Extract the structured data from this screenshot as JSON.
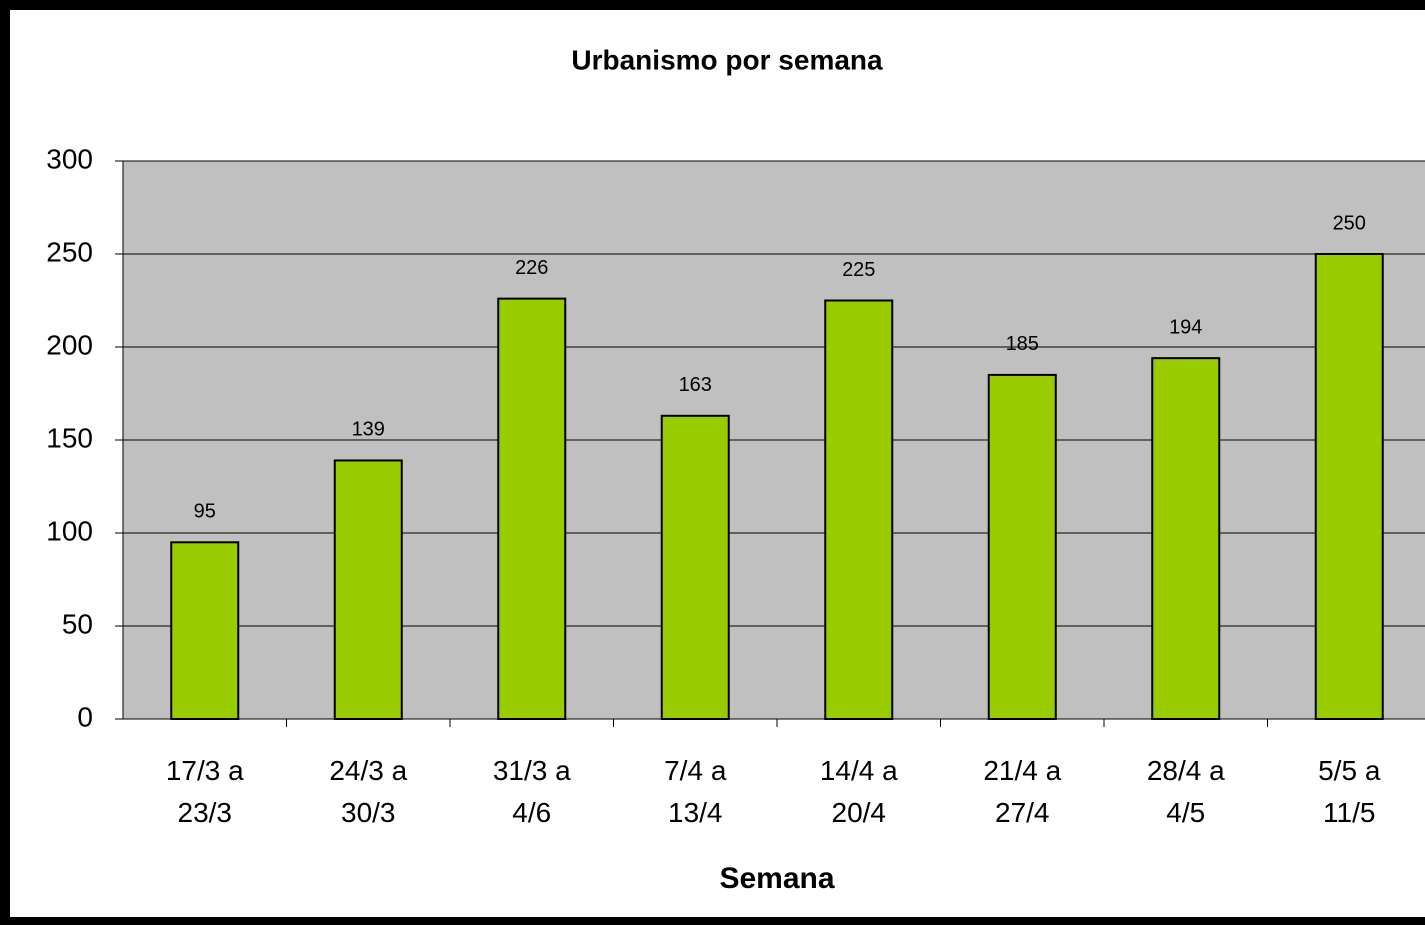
{
  "chart_data": {
    "type": "bar",
    "title": "Urbanismo por semana",
    "x_label": "Semana",
    "categories": [
      "17/3 a\n23/3",
      "24/3 a\n30/3",
      "31/3 a\n4/6",
      "7/4 a\n13/4",
      "14/4 a\n20/4",
      "21/4 a\n27/4",
      "28/4 a\n4/5",
      "5/5 a\n11/5"
    ],
    "values": [
      95,
      139,
      226,
      163,
      225,
      185,
      194,
      250
    ],
    "color": "#99cc00",
    "plot_background": "#c0c0c0",
    "ylim": [
      0,
      300
    ],
    "yticks": [
      0,
      50,
      100,
      150,
      200,
      250,
      300
    ],
    "grid": true
  }
}
